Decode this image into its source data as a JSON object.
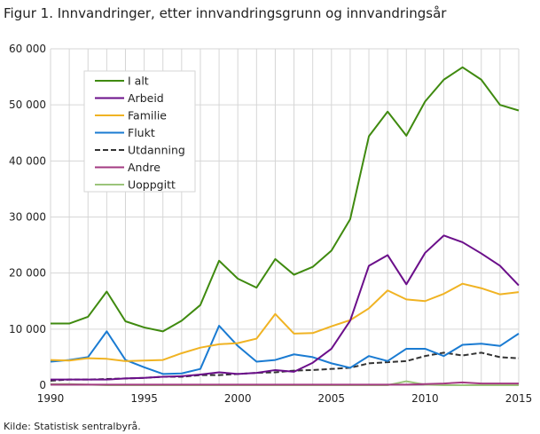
{
  "title": "Figur 1. Innvandringer, etter innvandringsgrunn og innvandringsår",
  "source": "Kilde: Statistisk sentralbyrå.",
  "chart_data": {
    "type": "line",
    "xlim": [
      1990,
      2015
    ],
    "ylim": [
      0,
      60000
    ],
    "grid": true,
    "legend_placement": "top-left",
    "x_ticks": [
      "1990",
      "1995",
      "2000",
      "2005",
      "2010",
      "2015"
    ],
    "y_ticks": [
      "0",
      "10 000",
      "20 000",
      "30 000",
      "40 000",
      "50 000",
      "60 000"
    ],
    "x": [
      1990,
      1991,
      1992,
      1993,
      1994,
      1995,
      1996,
      1997,
      1998,
      1999,
      2000,
      2001,
      2002,
      2003,
      2004,
      2005,
      2006,
      2007,
      2008,
      2009,
      2010,
      2011,
      2012,
      2013,
      2014,
      2015
    ],
    "series": [
      {
        "name": "I alt",
        "color": "#3f8a0f",
        "dash": false,
        "values": [
          11000,
          11000,
          12200,
          16700,
          11400,
          10300,
          9600,
          11500,
          14300,
          22200,
          19000,
          17400,
          22500,
          19700,
          21100,
          24000,
          29600,
          44400,
          48800,
          44500,
          50600,
          54500,
          56700,
          54500,
          50000,
          49000
        ]
      },
      {
        "name": "Arbeid",
        "color": "#6b0f8a",
        "dash": false,
        "values": [
          1000,
          1000,
          1000,
          1000,
          1200,
          1300,
          1500,
          1600,
          1900,
          2300,
          2000,
          2200,
          2700,
          2400,
          4000,
          6500,
          11500,
          21300,
          23200,
          18000,
          23600,
          26700,
          25500,
          23500,
          21300,
          17800
        ]
      },
      {
        "name": "Familie",
        "color": "#f0b323",
        "dash": false,
        "values": [
          4500,
          4400,
          4800,
          4700,
          4300,
          4400,
          4500,
          5700,
          6700,
          7300,
          7500,
          8300,
          12700,
          9200,
          9300,
          10500,
          11600,
          13700,
          16900,
          15300,
          15000,
          16300,
          18100,
          17300,
          16200,
          16600
        ]
      },
      {
        "name": "Flukt",
        "color": "#1a7bd2",
        "dash": false,
        "values": [
          4200,
          4500,
          5000,
          9600,
          4500,
          3200,
          2000,
          2100,
          2900,
          10600,
          7000,
          4200,
          4500,
          5500,
          5000,
          3900,
          3100,
          5200,
          4300,
          6500,
          6500,
          5200,
          7200,
          7400,
          7000,
          9200
        ]
      },
      {
        "name": "Utdanning",
        "color": "#333333",
        "dash": true,
        "values": [
          800,
          1000,
          1000,
          1100,
          1200,
          1300,
          1500,
          1500,
          1800,
          1800,
          2000,
          2200,
          2300,
          2600,
          2700,
          2900,
          3100,
          3900,
          4100,
          4300,
          5200,
          5800,
          5300,
          5800,
          5000,
          4800
        ]
      },
      {
        "name": "Andre",
        "color": "#a33a82",
        "dash": false,
        "values": [
          100,
          100,
          100,
          100,
          100,
          100,
          100,
          100,
          100,
          100,
          100,
          100,
          100,
          100,
          100,
          100,
          100,
          100,
          100,
          100,
          200,
          300,
          500,
          300,
          300,
          300
        ]
      },
      {
        "name": "Uoppgitt",
        "color": "#9bc47a",
        "dash": false,
        "values": [
          200,
          200,
          100,
          0,
          0,
          0,
          0,
          0,
          0,
          0,
          0,
          0,
          0,
          0,
          0,
          0,
          0,
          0,
          0,
          700,
          100,
          0,
          0,
          0,
          0,
          0
        ]
      }
    ]
  }
}
